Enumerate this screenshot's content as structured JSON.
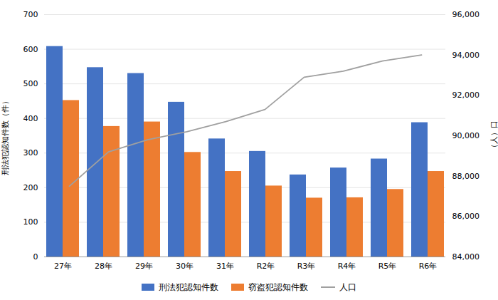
{
  "chart_data": {
    "type": "bar",
    "categories": [
      "27年",
      "28年",
      "29年",
      "30年",
      "31年",
      "R2年",
      "R3年",
      "R4年",
      "R5年",
      "R6年"
    ],
    "series": [
      {
        "name": "刑法犯認知件数",
        "color": "#4472C4",
        "values": [
          608,
          547,
          530,
          447,
          341,
          305,
          237,
          257,
          283,
          388
        ]
      },
      {
        "name": "窃盗犯認知件数",
        "color": "#ED7D31",
        "values": [
          452,
          377,
          390,
          302,
          247,
          205,
          170,
          171,
          195,
          247
        ]
      },
      {
        "name": "人口",
        "type": "line",
        "axis": "y2",
        "color": "#A0A0A0",
        "values": [
          87500,
          89200,
          89800,
          90200,
          90700,
          91300,
          92900,
          93200,
          93700,
          94000
        ]
      }
    ],
    "ylabel": "刑法犯認知件数（件）",
    "y2label": "（人）口",
    "ylim": [
      0,
      700
    ],
    "yticks": [
      0,
      100,
      200,
      300,
      400,
      500,
      600,
      700
    ],
    "y2lim": [
      84000,
      96000
    ],
    "y2ticks": [
      {
        "value": 84000,
        "label": "84,000"
      },
      {
        "value": 86000,
        "label": "86,000"
      },
      {
        "value": 88000,
        "label": "88,000"
      },
      {
        "value": 90000,
        "label": "90,000"
      },
      {
        "value": 92000,
        "label": "92,000"
      },
      {
        "value": 94000,
        "label": "94,000"
      },
      {
        "value": 96000,
        "label": "96,000"
      }
    ],
    "grid": true,
    "legend": "bottom"
  }
}
